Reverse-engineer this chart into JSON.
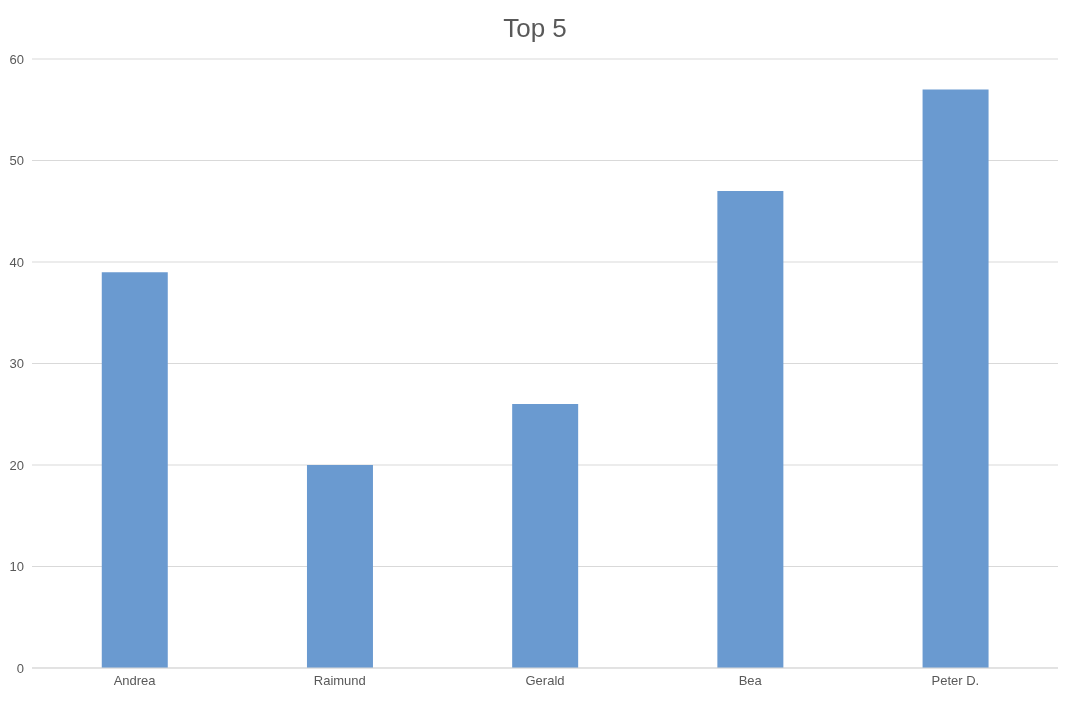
{
  "chart_data": {
    "type": "bar",
    "title": "Top 5",
    "categories": [
      "Andrea",
      "Raimund",
      "Gerald",
      "Bea",
      "Peter D."
    ],
    "values": [
      39,
      20,
      26,
      47,
      57
    ],
    "color": "#6a9ad0",
    "ylim": [
      0,
      60
    ],
    "yticks": [
      0,
      10,
      20,
      30,
      40,
      50,
      60
    ],
    "grid": "y",
    "legend": false
  }
}
